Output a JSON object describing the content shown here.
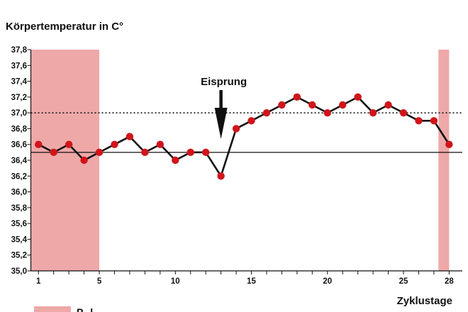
{
  "chart_data": {
    "type": "line",
    "title": "Körpertemperatur in C°",
    "xlabel": "Zyklustage",
    "ylabel": "",
    "xlim": [
      0.5,
      28
    ],
    "ylim": [
      35.0,
      37.8
    ],
    "x_ticks": [
      1,
      5,
      10,
      15,
      20,
      25,
      28
    ],
    "y_ticks": [
      "35,0",
      "35,2",
      "35,4",
      "35,6",
      "35,8",
      "36,0",
      "36,2",
      "36,4",
      "36,6",
      "36,8",
      "37,0",
      "37,2",
      "37,4",
      "37,6",
      "37,8"
    ],
    "series": [
      {
        "name": "",
        "x": [
          1,
          2,
          3,
          4,
          5,
          6,
          7,
          8,
          9,
          10,
          11,
          12,
          13,
          14,
          15,
          16,
          17,
          18,
          19,
          20,
          21,
          22,
          23,
          24,
          25,
          26,
          27,
          28
        ],
        "y": [
          36.6,
          36.5,
          36.6,
          36.4,
          36.5,
          36.6,
          36.7,
          36.5,
          36.6,
          36.4,
          36.5,
          36.5,
          36.2,
          36.8,
          36.9,
          37.0,
          37.1,
          37.2,
          37.1,
          37.0,
          37.1,
          37.2,
          37.0,
          37.1,
          37.0,
          36.9,
          36.9,
          36.6
        ]
      }
    ],
    "reference_lines": [
      {
        "y": 37.0,
        "style": "dotted"
      },
      {
        "y": 36.5,
        "style": "solid"
      }
    ],
    "shaded_regions": [
      {
        "x_from": 0.5,
        "x_to": 5
      },
      {
        "x_from": 27.3,
        "x_to": 28
      }
    ],
    "annotation": {
      "text": "Eisprung",
      "x": 13
    },
    "legend": {
      "position": "bottom-left",
      "partial_label": "P...l"
    },
    "colors": {
      "shade": "#eea8a8",
      "marker": "#d0151b",
      "line": "#111111"
    },
    "grid": false
  }
}
